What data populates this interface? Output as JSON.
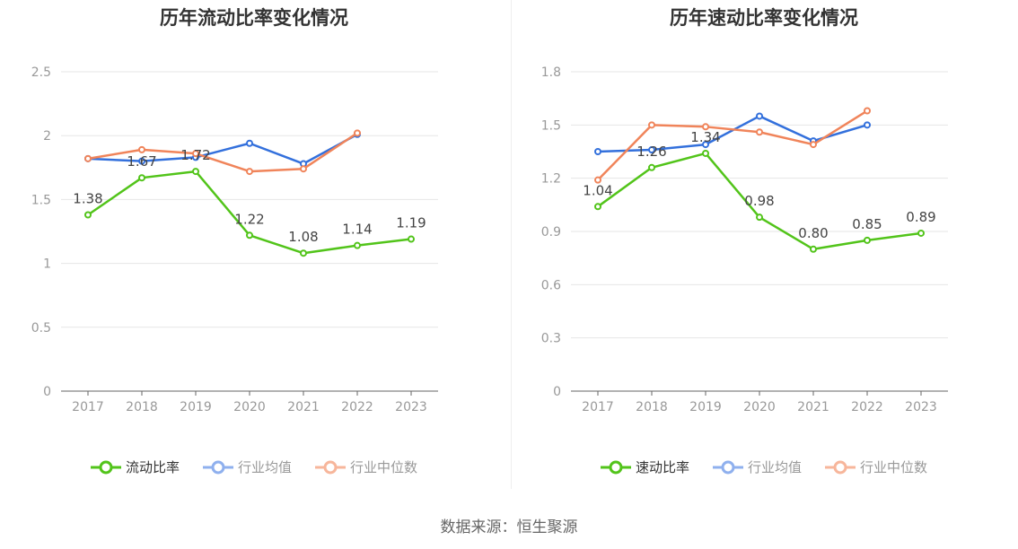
{
  "source": "数据来源：恒生聚源",
  "chart_data": [
    {
      "type": "line",
      "title": "历年流动比率变化情况",
      "categories": [
        "2017",
        "2018",
        "2019",
        "2020",
        "2021",
        "2022",
        "2023"
      ],
      "ylim": [
        0,
        2.5
      ],
      "yticks": [
        0,
        0.5,
        1,
        1.5,
        2,
        2.5
      ],
      "ytick_labels": [
        "0",
        "0.5",
        "1",
        "1.5",
        "2",
        "2.5"
      ],
      "grid": true,
      "legend_position": "bottom-center",
      "series": [
        {
          "name": "流动比率",
          "color": "#52c41a",
          "values": [
            1.38,
            1.67,
            1.72,
            1.22,
            1.08,
            1.14,
            1.19
          ],
          "labels": [
            "1.38",
            "1.67",
            "1.72",
            "1.22",
            "1.08",
            "1.14",
            "1.19"
          ]
        },
        {
          "name": "行业均值",
          "color": "#3370dc",
          "legend_color": "#8fb0ee",
          "values": [
            1.82,
            1.8,
            1.83,
            1.94,
            1.78,
            2.01,
            null
          ]
        },
        {
          "name": "行业中位数",
          "color": "#f0845a",
          "legend_color": "#f7b69b",
          "values": [
            1.82,
            1.89,
            1.86,
            1.72,
            1.74,
            2.02,
            null
          ]
        }
      ]
    },
    {
      "type": "line",
      "title": "历年速动比率变化情况",
      "categories": [
        "2017",
        "2018",
        "2019",
        "2020",
        "2021",
        "2022",
        "2023"
      ],
      "ylim": [
        0,
        1.8
      ],
      "yticks": [
        0,
        0.3,
        0.6,
        0.9,
        1.2,
        1.5,
        1.8
      ],
      "ytick_labels": [
        "0",
        "0.3",
        "0.6",
        "0.9",
        "1.2",
        "1.5",
        "1.8"
      ],
      "grid": true,
      "legend_position": "bottom-center",
      "series": [
        {
          "name": "速动比率",
          "color": "#52c41a",
          "values": [
            1.04,
            1.26,
            1.34,
            0.98,
            0.8,
            0.85,
            0.89
          ],
          "labels": [
            "1.04",
            "1.26",
            "1.34",
            "0.98",
            "0.80",
            "0.85",
            "0.89"
          ]
        },
        {
          "name": "行业均值",
          "color": "#3370dc",
          "legend_color": "#8fb0ee",
          "values": [
            1.35,
            1.36,
            1.39,
            1.55,
            1.41,
            1.5,
            null
          ]
        },
        {
          "name": "行业中位数",
          "color": "#f0845a",
          "legend_color": "#f7b69b",
          "values": [
            1.19,
            1.5,
            1.49,
            1.46,
            1.39,
            1.58,
            null
          ]
        }
      ]
    }
  ]
}
